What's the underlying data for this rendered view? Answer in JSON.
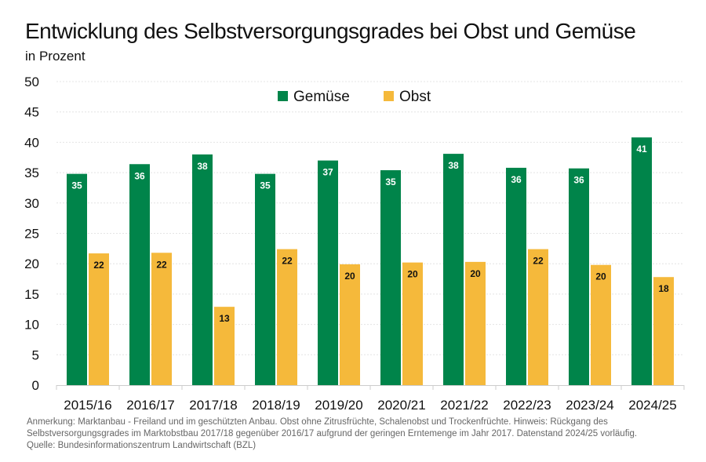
{
  "chart_data": {
    "type": "bar",
    "title": "Entwicklung des Selbstversorgungsgrades bei Obst und Gemüse",
    "subtitle": "in Prozent",
    "xlabel": "",
    "ylabel": "",
    "ylim": [
      0,
      50
    ],
    "yticks": [
      0,
      5,
      10,
      15,
      20,
      25,
      30,
      35,
      40,
      45,
      50
    ],
    "grid": true,
    "legend_position": "top-center",
    "categories": [
      "2015/16",
      "2016/17",
      "2017/18",
      "2018/19",
      "2019/20",
      "2020/21",
      "2021/22",
      "2022/23",
      "2023/24",
      "2024/25"
    ],
    "series": [
      {
        "name": "Gemüse",
        "color": "#00844a",
        "label_color": "#ffffff",
        "values": [
          34.8,
          36.4,
          38.0,
          34.8,
          37.0,
          35.4,
          38.1,
          35.8,
          35.7,
          40.8
        ],
        "labels": [
          "35",
          "36",
          "38",
          "35",
          "37",
          "35",
          "38",
          "36",
          "36",
          "41"
        ]
      },
      {
        "name": "Obst",
        "color": "#f5b93b",
        "label_color": "#111111",
        "values": [
          21.7,
          21.8,
          12.9,
          22.4,
          19.9,
          20.2,
          20.3,
          22.4,
          19.8,
          17.8
        ],
        "labels": [
          "22",
          "22",
          "13",
          "22",
          "20",
          "20",
          "20",
          "22",
          "20",
          "18"
        ]
      }
    ]
  },
  "footnote": [
    "Anmerkung: Marktanbau - Freiland und im geschützten Anbau. Obst ohne Zitrusfrüchte, Schalenobst und Trockenfrüchte. Hinweis: Rückgang des",
    "Selbstversorgungsgrades im Marktobstbau 2017/18 gegenüber 2016/17 aufgrund der geringen Erntemenge im Jahr 2017. Datenstand 2024/25 vorläufig.",
    "Quelle: Bundesinformationszentrum Landwirtschaft (BZL)"
  ]
}
